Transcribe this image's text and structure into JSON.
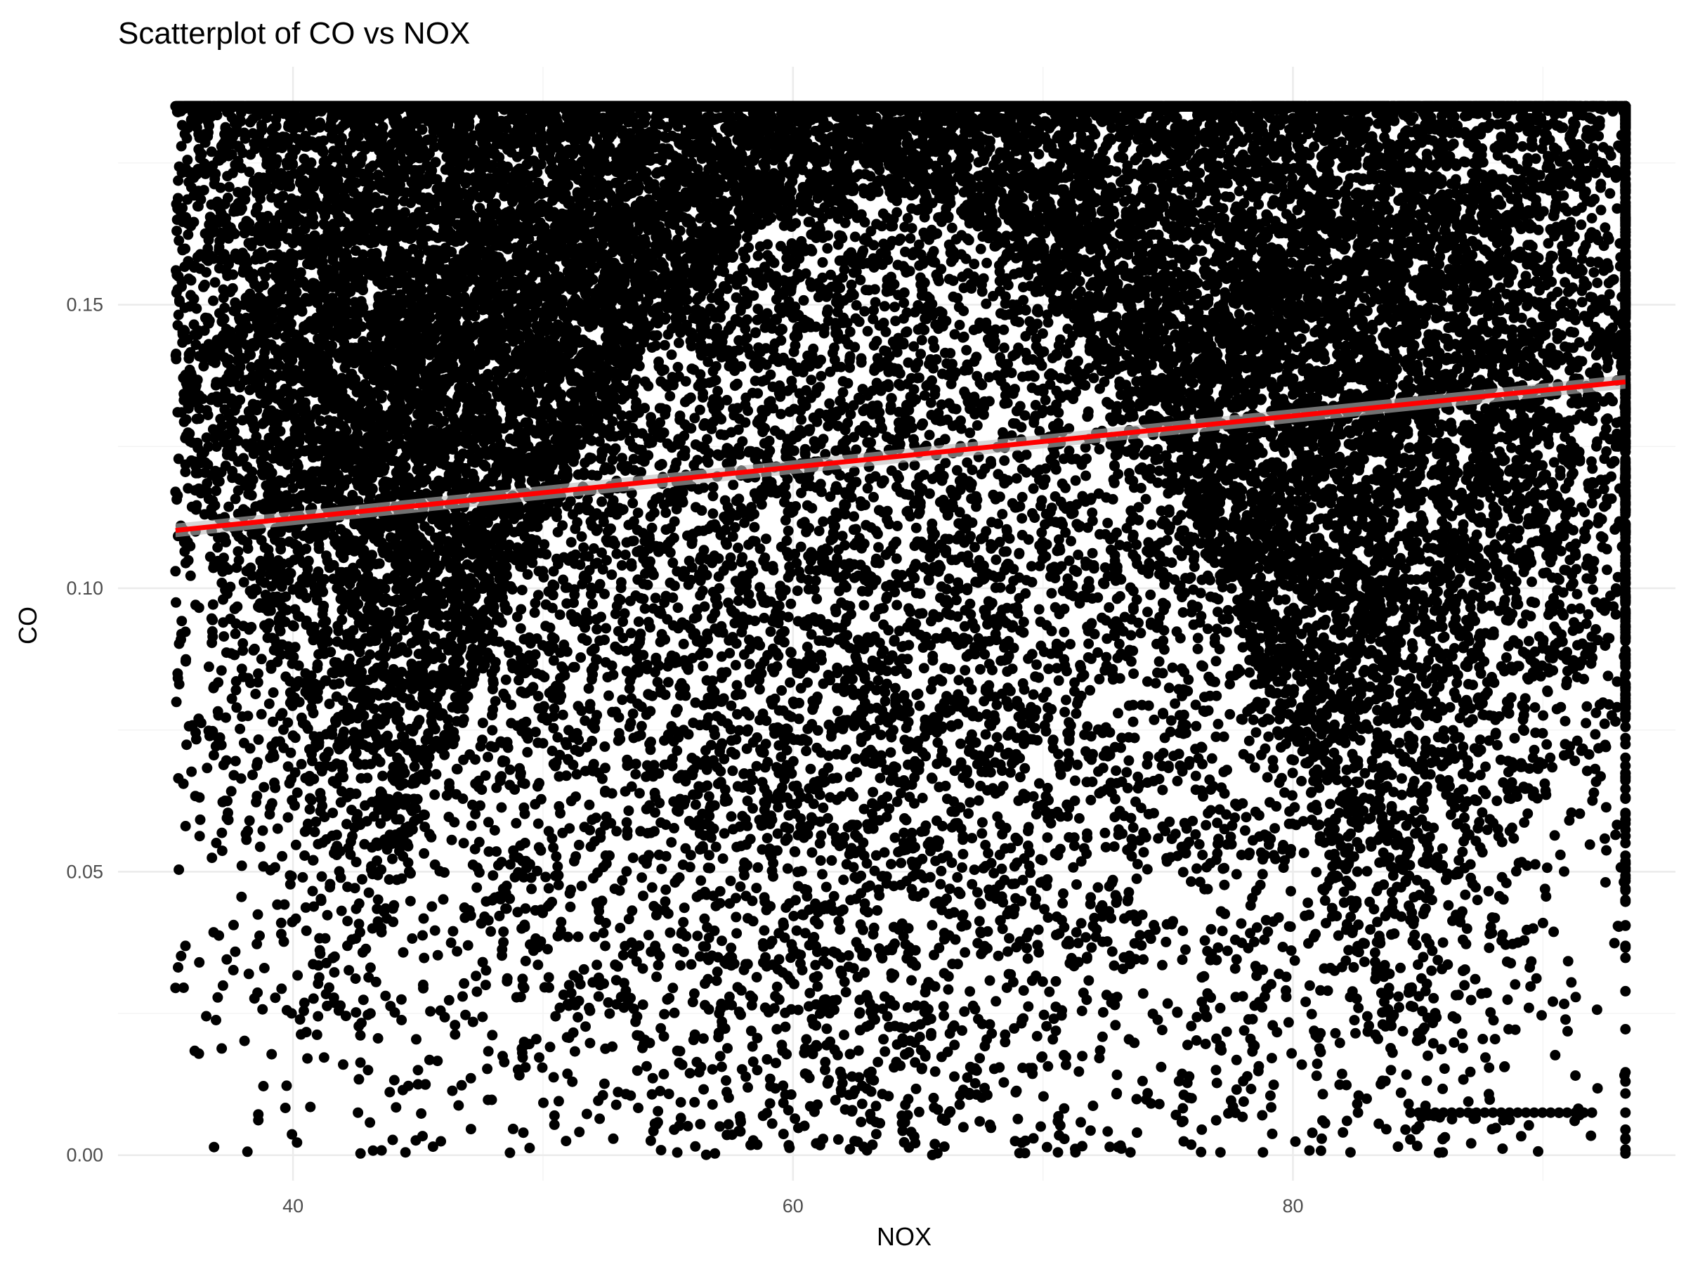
{
  "chart_data": {
    "type": "scatter",
    "title": "Scatterplot of CO vs NOX",
    "xlabel": "NOX",
    "ylabel": "CO",
    "xlim": [
      33,
      95.3
    ],
    "ylim": [
      -0.0045,
      0.1895
    ],
    "x_ticks": [
      40,
      60,
      80
    ],
    "x_tick_labels": [
      "40",
      "60",
      "80"
    ],
    "y_ticks": [
      0.0,
      0.05,
      0.1,
      0.15
    ],
    "y_tick_labels": [
      "0.00",
      "0.05",
      "0.10",
      "0.15"
    ],
    "grid": true,
    "point_color": "#000000",
    "trend_line": {
      "type": "linear",
      "color": "#ff0000",
      "x": [
        35.3,
        93.3
      ],
      "y": [
        0.1102,
        0.1364
      ]
    },
    "points": [
      [
        35.3,
        0.185
      ],
      [
        35.4,
        0.185
      ],
      [
        36.4,
        0.185
      ],
      [
        35.3,
        0.117
      ],
      [
        35.3,
        0.103
      ],
      [
        35.3,
        0.0295
      ],
      [
        37.2,
        0.098
      ],
      [
        37.8,
        0.126
      ],
      [
        37.7,
        0.0695
      ],
      [
        38.3,
        0.113
      ],
      [
        38.2,
        0.107
      ],
      [
        39.0,
        0.096
      ],
      [
        39.1,
        0.15
      ],
      [
        39.5,
        0.0775
      ],
      [
        40.0,
        0.074
      ],
      [
        40.5,
        0.0665
      ],
      [
        40.8,
        0.052
      ],
      [
        41.0,
        0.0245
      ],
      [
        42.3,
        0.053
      ],
      [
        42.6,
        0.0075
      ],
      [
        42.7,
        0.0003
      ],
      [
        43.0,
        0.015
      ],
      [
        43.1,
        0.025
      ],
      [
        43.2,
        0.0008
      ],
      [
        43.5,
        0.0585
      ],
      [
        43.7,
        0.0435
      ],
      [
        44.0,
        0.0435
      ],
      [
        44.5,
        0.0005
      ],
      [
        45.0,
        0.0125
      ],
      [
        45.0,
        0.015
      ],
      [
        45.3,
        0.0125
      ],
      [
        45.6,
        0.0015
      ],
      [
        45.9,
        0.0255
      ],
      [
        46.4,
        0.0395
      ],
      [
        47.0,
        0.037
      ],
      [
        47.2,
        0.0235
      ],
      [
        48.5,
        0.0435
      ],
      [
        49.3,
        0.0435
      ],
      [
        49.3,
        0.0195
      ],
      [
        49.3,
        0.0155
      ],
      [
        50.5,
        0.0245
      ],
      [
        51.0,
        0.0385
      ],
      [
        92.9,
        0.0765
      ],
      [
        92.9,
        0.0565
      ],
      [
        93.3,
        0.0665
      ],
      [
        93.3,
        0.0935
      ],
      [
        93.3,
        0.089
      ],
      [
        93.3,
        0.0845
      ],
      [
        93.3,
        0.0075
      ],
      [
        93.3,
        0.0045
      ],
      [
        93.3,
        0.003
      ],
      [
        93.3,
        0.001
      ],
      [
        93.3,
        0.0003
      ],
      [
        93.3,
        0.098
      ],
      [
        93.3,
        0.105
      ],
      [
        93.3,
        0.113
      ],
      [
        93.3,
        0.12
      ],
      [
        93.3,
        0.14
      ],
      [
        93.3,
        0.155
      ],
      [
        93.3,
        0.17
      ],
      [
        93.3,
        0.183
      ],
      [
        84.2,
        0.0015
      ],
      [
        84.5,
        0.0045
      ],
      [
        85.0,
        0.0215
      ],
      [
        86.0,
        0.0375
      ],
      [
        86.8,
        0.038
      ],
      [
        86.8,
        0.0325
      ],
      [
        88.2,
        0.0575
      ],
      [
        88.8,
        0.0855
      ],
      [
        89.5,
        0.0875
      ],
      [
        89.7,
        0.0745
      ],
      [
        90.0,
        0.069
      ],
      [
        90.4,
        0.0855
      ],
      [
        90.5,
        0.0885
      ],
      [
        91.2,
        0.0925
      ],
      [
        82.6,
        0.0075
      ],
      [
        82.0,
        0.004
      ],
      [
        82.3,
        0.0005
      ],
      [
        81.5,
        0.033
      ],
      [
        81.1,
        0.0215
      ],
      [
        81.7,
        0.0215
      ],
      [
        82.5,
        0.0215
      ],
      [
        83.4,
        0.0205
      ],
      [
        80.9,
        0.039
      ],
      [
        78.8,
        0.0005
      ],
      [
        77.1,
        0.0005
      ],
      [
        73.5,
        0.0005
      ],
      [
        71.3,
        0.0005
      ],
      [
        70.6,
        0.0005
      ]
    ],
    "series_cloud": [
      [
        45.0,
        0.185,
        4.0,
        0.0035,
        0.0
      ],
      [
        70.0,
        0.185,
        23.3,
        0.0035,
        0.0
      ],
      [
        48.0,
        0.18,
        14.0,
        0.07,
        0.0
      ],
      [
        46.0,
        0.16,
        12.0,
        0.03,
        0.0
      ],
      [
        43.0,
        0.13,
        3.5,
        0.035,
        0.0
      ],
      [
        55.0,
        0.14,
        10.0,
        0.05,
        0.0
      ],
      [
        65.0,
        0.13,
        12.0,
        0.065,
        0.0
      ],
      [
        75.0,
        0.14,
        10.0,
        0.06,
        0.0
      ],
      [
        83.0,
        0.155,
        6.0,
        0.035,
        0.0
      ],
      [
        88.0,
        0.15,
        5.0,
        0.04,
        0.0
      ],
      [
        62.0,
        0.08,
        7.0,
        0.08,
        0.0
      ],
      [
        63.0,
        0.035,
        5.5,
        0.035,
        0.0
      ],
      [
        48.0,
        0.075,
        4.0,
        0.045,
        0.0
      ],
      [
        80.0,
        0.07,
        5.0,
        0.055,
        0.0
      ]
    ],
    "bottom_band": {
      "x_range": [
        84.7,
        92.2
      ],
      "y": 0.0075
    }
  }
}
